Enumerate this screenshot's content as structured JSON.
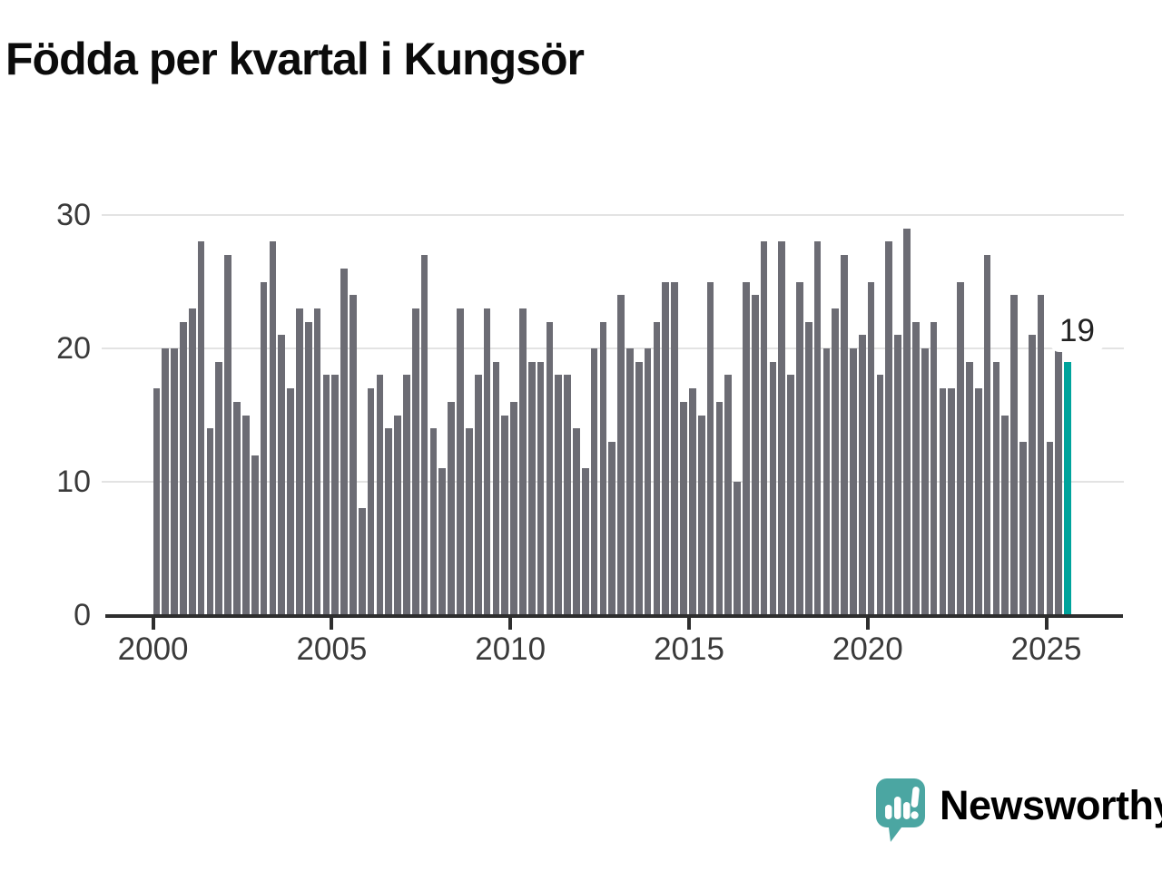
{
  "title": {
    "text": "Födda per kvartal i Kungsör"
  },
  "chart_data": {
    "type": "bar",
    "title": "Födda per kvartal i Kungsör",
    "xlabel": "",
    "ylabel": "",
    "ylim": [
      0,
      30
    ],
    "grid": "horizontal",
    "y_ticks": [
      {
        "label": "0",
        "value": 0
      },
      {
        "label": "10",
        "value": 10
      },
      {
        "label": "20",
        "value": 20
      },
      {
        "label": "30",
        "value": 30
      }
    ],
    "x_ticks": [
      {
        "label": "2000",
        "quarter_offset": 0
      },
      {
        "label": "2005",
        "quarter_offset": 20
      },
      {
        "label": "2010",
        "quarter_offset": 40
      },
      {
        "label": "2015",
        "quarter_offset": 60
      },
      {
        "label": "2020",
        "quarter_offset": 80
      },
      {
        "label": "2025",
        "quarter_offset": 100
      }
    ],
    "categories": [
      "2000 Q1",
      "2000 Q2",
      "2000 Q3",
      "2000 Q4",
      "2001 Q1",
      "2001 Q2",
      "2001 Q3",
      "2001 Q4",
      "2002 Q1",
      "2002 Q2",
      "2002 Q3",
      "2002 Q4",
      "2003 Q1",
      "2003 Q2",
      "2003 Q3",
      "2003 Q4",
      "2004 Q1",
      "2004 Q2",
      "2004 Q3",
      "2004 Q4",
      "2005 Q1",
      "2005 Q2",
      "2005 Q3",
      "2005 Q4",
      "2006 Q1",
      "2006 Q2",
      "2006 Q3",
      "2006 Q4",
      "2007 Q1",
      "2007 Q2",
      "2007 Q3",
      "2007 Q4",
      "2008 Q1",
      "2008 Q2",
      "2008 Q3",
      "2008 Q4",
      "2009 Q1",
      "2009 Q2",
      "2009 Q3",
      "2009 Q4",
      "2010 Q1",
      "2010 Q2",
      "2010 Q3",
      "2010 Q4",
      "2011 Q1",
      "2011 Q2",
      "2011 Q3",
      "2011 Q4",
      "2012 Q1",
      "2012 Q2",
      "2012 Q3",
      "2012 Q4",
      "2013 Q1",
      "2013 Q2",
      "2013 Q3",
      "2013 Q4",
      "2014 Q1",
      "2014 Q2",
      "2014 Q3",
      "2014 Q4",
      "2015 Q1",
      "2015 Q2",
      "2015 Q3",
      "2015 Q4",
      "2016 Q1",
      "2016 Q2",
      "2016 Q3",
      "2016 Q4",
      "2017 Q1",
      "2017 Q2",
      "2017 Q3",
      "2017 Q4",
      "2018 Q1",
      "2018 Q2",
      "2018 Q3",
      "2018 Q4",
      "2019 Q1",
      "2019 Q2",
      "2019 Q3",
      "2019 Q4",
      "2020 Q1",
      "2020 Q2",
      "2020 Q3",
      "2020 Q4",
      "2021 Q1",
      "2021 Q2",
      "2021 Q3",
      "2021 Q4",
      "2022 Q1",
      "2022 Q2",
      "2022 Q3",
      "2022 Q4",
      "2023 Q1",
      "2023 Q2",
      "2023 Q3",
      "2023 Q4",
      "2024 Q1",
      "2024 Q2",
      "2024 Q3",
      "2024 Q4",
      "2025 Q1",
      "2025 Q2",
      "2025 Q3"
    ],
    "values": [
      17,
      20,
      20,
      22,
      23,
      28,
      14,
      19,
      27,
      16,
      15,
      12,
      25,
      28,
      21,
      17,
      23,
      22,
      23,
      18,
      18,
      26,
      24,
      8,
      17,
      18,
      14,
      15,
      18,
      23,
      27,
      14,
      11,
      16,
      23,
      14,
      18,
      23,
      19,
      15,
      16,
      23,
      19,
      19,
      22,
      18,
      18,
      14,
      11,
      20,
      22,
      13,
      24,
      20,
      19,
      20,
      22,
      25,
      25,
      16,
      17,
      15,
      25,
      16,
      18,
      10,
      25,
      24,
      28,
      19,
      28,
      18,
      25,
      22,
      28,
      20,
      23,
      27,
      20,
      21,
      25,
      18,
      28,
      21,
      29,
      22,
      20,
      22,
      17,
      17,
      25,
      19,
      17,
      27,
      19,
      15,
      24,
      13,
      21,
      24,
      13,
      20,
      19
    ],
    "highlight_index": 102,
    "annotation": {
      "text": "19"
    },
    "colors": {
      "bar": "#6c6c74",
      "highlight": "#00a39c",
      "axis": "#2e2e2e",
      "grid": "#e3e3e3",
      "tick_label": "#3a3a3a"
    },
    "legend": "none"
  },
  "branding": {
    "logo_text": "Newsworthy",
    "logo_color": "#4ba6a2"
  }
}
